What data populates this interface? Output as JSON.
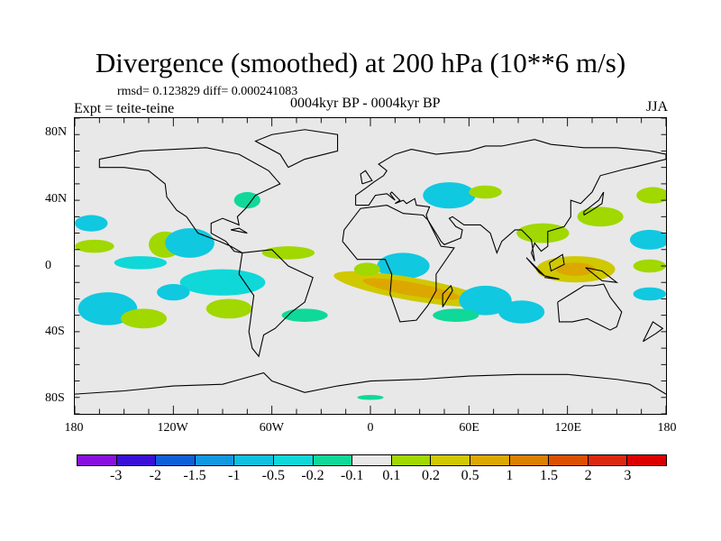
{
  "title": "Divergence (smoothed) at 200 hPa (10**6 m/s)",
  "stats": "rmsd= 0.123829 diff= 0.000241083",
  "left_label": "Expt = teite-teine",
  "center_label": "0004kyr BP - 0004kyr BP",
  "right_label": "JJA",
  "lat_labels": [
    "80N",
    "40N",
    "0",
    "40S",
    "80S"
  ],
  "lon_labels": [
    "180",
    "120W",
    "60W",
    "0",
    "60E",
    "120E",
    "180"
  ],
  "colorbar": {
    "colors": [
      "#8a10e0",
      "#3a10d8",
      "#1060d8",
      "#1098e0",
      "#10c0e0",
      "#10d8d8",
      "#10d898",
      "#e8e8e8",
      "#a0d800",
      "#d0c800",
      "#dca800",
      "#dc8000",
      "#dc5000",
      "#dc2810",
      "#dc0000"
    ],
    "labels": [
      "-3",
      "-2",
      "-1.5",
      "-1",
      "-0.5",
      "-0.2",
      "-0.1",
      "0.1",
      "0.2",
      "0.5",
      "1",
      "1.5",
      "2",
      "3"
    ]
  }
}
